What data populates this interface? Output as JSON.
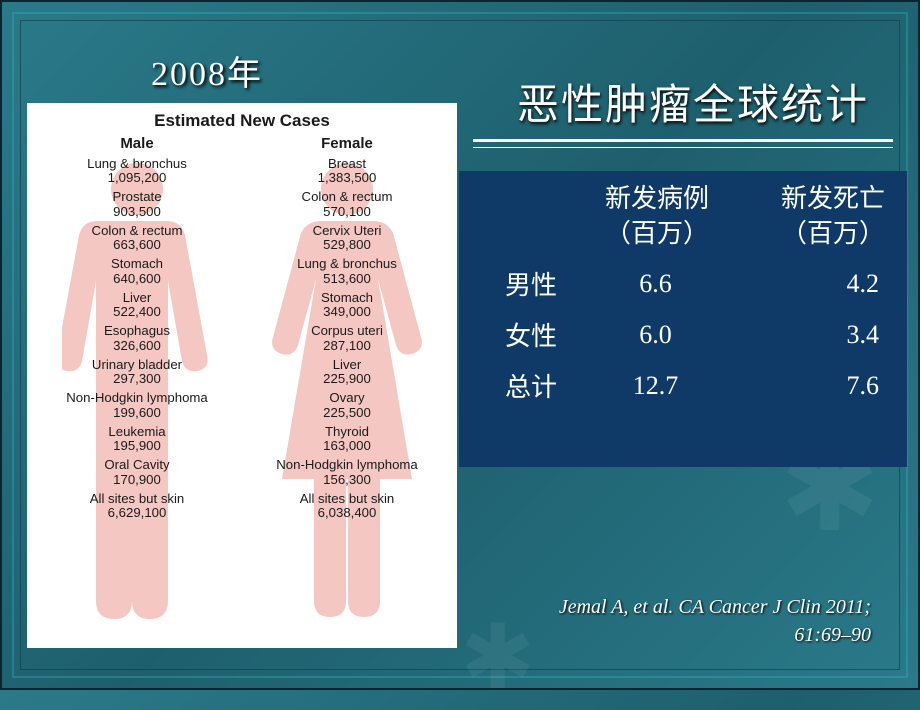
{
  "year_label": "2008年",
  "right_title": "恶性肿瘤全球统计",
  "card": {
    "title": "Estimated New Cases",
    "male_label": "Male",
    "female_label": "Female",
    "silhouette_color": "#f3c1bd",
    "male": [
      {
        "name": "Lung & bronchus",
        "value": "1,095,200"
      },
      {
        "name": "Prostate",
        "value": "903,500"
      },
      {
        "name": "Colon & rectum",
        "value": "663,600"
      },
      {
        "name": "Stomach",
        "value": "640,600"
      },
      {
        "name": "Liver",
        "value": "522,400"
      },
      {
        "name": "Esophagus",
        "value": "326,600"
      },
      {
        "name": "Urinary bladder",
        "value": "297,300"
      },
      {
        "name": "Non-Hodgkin lymphoma",
        "value": "199,600"
      },
      {
        "name": "Leukemia",
        "value": "195,900"
      },
      {
        "name": "Oral Cavity",
        "value": "170,900"
      },
      {
        "name": "All sites but skin",
        "value": "6,629,100"
      }
    ],
    "female": [
      {
        "name": "Breast",
        "value": "1,383,500"
      },
      {
        "name": "Colon & rectum",
        "value": "570,100"
      },
      {
        "name": "Cervix Uteri",
        "value": "529,800"
      },
      {
        "name": "Lung & bronchus",
        "value": "513,600"
      },
      {
        "name": "Stomach",
        "value": "349,000"
      },
      {
        "name": "Corpus uteri",
        "value": "287,100"
      },
      {
        "name": "Liver",
        "value": "225,900"
      },
      {
        "name": "Ovary",
        "value": "225,500"
      },
      {
        "name": "Thyroid",
        "value": "163,000"
      },
      {
        "name": "Non-Hodgkin lymphoma",
        "value": "156,300"
      },
      {
        "name": "All sites but skin",
        "value": "6,038,400"
      }
    ]
  },
  "stats": {
    "background": "#0f3a68",
    "header_cases_l1": "新发病例",
    "header_cases_l2": "（百万）",
    "header_deaths_l1": "新发死亡",
    "header_deaths_l2": "（百万）",
    "rows": [
      {
        "label": "男性",
        "cases": "6.6",
        "deaths": "4.2"
      },
      {
        "label": "女性",
        "cases": "6.0",
        "deaths": "3.4"
      },
      {
        "label": "总计",
        "cases": "12.7",
        "deaths": "7.6"
      }
    ]
  },
  "citation_l1": "Jemal A, et al. CA Cancer J Clin 2011;",
  "citation_l2": "61:69–90",
  "colors": {
    "slide_bg_from": "#2a7a8a",
    "slide_bg_to": "#1e5f6d",
    "text_white": "#ffffff"
  }
}
